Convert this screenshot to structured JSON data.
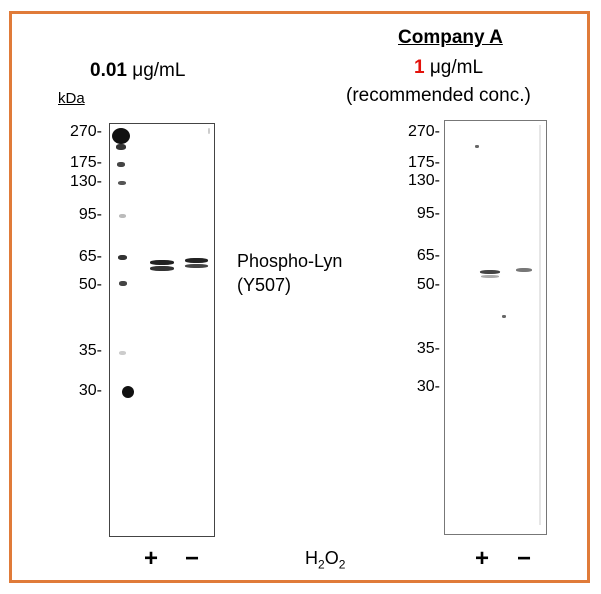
{
  "left_panel": {
    "conc_value": "0.01",
    "conc_unit": " μg/mL",
    "kda_label": "kDa",
    "markers": [
      "270-",
      "175-",
      "130-",
      "95-",
      "65-",
      "50-",
      "35-",
      "30-"
    ]
  },
  "right_panel": {
    "company": "Company A",
    "conc_value": "1",
    "conc_unit": " μg/mL",
    "note": "(recommended conc.)",
    "markers": [
      "270-",
      "175-",
      "130-",
      "95-",
      "65-",
      "50-",
      "35-",
      "30-"
    ]
  },
  "target": {
    "line1": "Phospho-Lyn",
    "line2": "(Y507)"
  },
  "lanes": {
    "plus": "+",
    "minus": "−",
    "treatment_main": "H",
    "treatment_sub1": "2",
    "treatment_mid": "O",
    "treatment_sub2": "2"
  },
  "colors": {
    "frame": "#e07b39",
    "highlight": "#e3120b"
  }
}
